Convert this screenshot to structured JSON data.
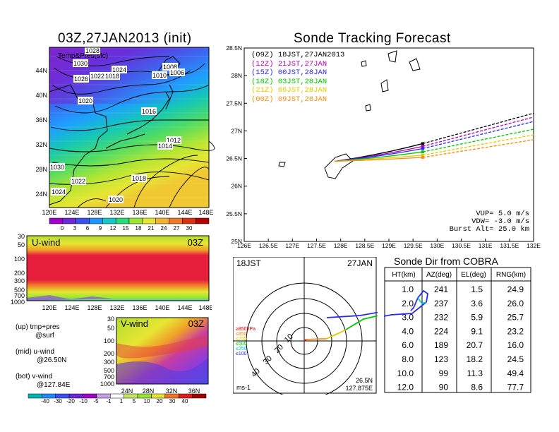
{
  "left_map": {
    "title": "03Z,27JAN2013 (init)",
    "overlay": "Temp&Pres(sfc)",
    "lat_labels": [
      "44N",
      "40N",
      "36N",
      "32N",
      "28N",
      "24N"
    ],
    "lon_labels": [
      "120E",
      "124E",
      "128E",
      "132E",
      "136E",
      "140E",
      "144E",
      "148E"
    ],
    "isobar_labels": [
      "1028",
      "1030",
      "1024",
      "1026",
      "1022",
      "1018",
      "1020",
      "1016",
      "1008",
      "1006",
      "1010",
      "1012",
      "1014",
      "1030",
      "1022",
      "1018",
      "1020",
      "1024"
    ],
    "colorbar_labels": [
      "0",
      "3",
      "6",
      "9",
      "12",
      "15",
      "18",
      "21",
      "24",
      "27",
      "30"
    ],
    "colorbar_colors": [
      "#a000c8",
      "#6e28dc",
      "#3c50f0",
      "#1e96ff",
      "#14c8c8",
      "#28dc78",
      "#9be632",
      "#e6e632",
      "#f0b432",
      "#f07828",
      "#dc3214",
      "#b40000"
    ]
  },
  "uwind": {
    "title": "U-wind",
    "time": "03Z",
    "y_ticks": [
      "30",
      "50",
      "100",
      "200",
      "300",
      "500",
      "700",
      "1000"
    ],
    "x_ticks": [
      "120E",
      "124E",
      "128E",
      "132E",
      "136E",
      "140E",
      "144E",
      "148E"
    ]
  },
  "vwind": {
    "title": "V-wind",
    "time": "03Z",
    "y_ticks": [
      "30",
      "50",
      "100",
      "200",
      "300",
      "500",
      "700",
      "1000"
    ],
    "x_ticks": [
      "24N",
      "28N",
      "32N",
      "36N"
    ],
    "colorbar_labels": [
      "-40",
      "-30",
      "-20",
      "-10",
      "-5",
      "-1",
      "1",
      "5",
      "10",
      "20",
      "30",
      "40"
    ],
    "colorbar_colors": [
      "#00b4b4",
      "#1e8cff",
      "#3c50f0",
      "#6e28dc",
      "#a000c8",
      "#c8a0e6",
      "#ffffff",
      "#c8e664",
      "#9be632",
      "#e6e632",
      "#f07828",
      "#dc1e1e",
      "#a00000"
    ]
  },
  "legend_notes": [
    {
      "a": "(up) tmp+pres",
      "b": "@surf"
    },
    {
      "a": "(mid) u-wind",
      "b": "@26.50N"
    },
    {
      "a": "(bot) v-wind",
      "b": "@127.84E"
    }
  ],
  "track": {
    "title": "Sonde Tracking Forecast",
    "launches": [
      {
        "tag": "(09Z)",
        "time": "18JST,27JAN2013",
        "color": "#000000"
      },
      {
        "tag": "(12Z)",
        "time": "21JST,27JAN",
        "color": "#b400b4"
      },
      {
        "tag": "(15Z)",
        "time": "00JST,28JAN",
        "color": "#2828ff"
      },
      {
        "tag": "(18Z)",
        "time": "03JST,28JAN",
        "color": "#00c800"
      },
      {
        "tag": "(21Z)",
        "time": "06JST,28JAN",
        "color": "#e6c800"
      },
      {
        "tag": "(00Z)",
        "time": "09JST,28JAN",
        "color": "#ff8c14"
      }
    ],
    "params": [
      "VUP= 5.0 m/s",
      "VDW= -3.0 m/s",
      "Burst Alt= 25.0 km"
    ],
    "x_ticks": [
      "126E",
      "126.5E",
      "127E",
      "127.5E",
      "128E",
      "128.5E",
      "129E",
      "129.5E",
      "130E",
      "130.5E",
      "131E",
      "131.5E",
      "132E"
    ],
    "y_ticks": [
      "28.5N",
      "28N",
      "27.5N",
      "27N",
      "26.5N",
      "26N",
      "25.5N",
      "25N"
    ]
  },
  "chart_data": {
    "type": "line",
    "title": "Sonde Tracking Forecast",
    "xlim": [
      126,
      132
    ],
    "ylim": [
      25,
      28.5
    ],
    "launch_point": [
      127.875,
      26.45
    ],
    "series": [
      {
        "name": "(09Z) 18JST,27JAN2013",
        "burst": [
          129.7,
          26.77
        ],
        "end": [
          132.0,
          27.32
        ]
      },
      {
        "name": "(12Z) 21JST,27JAN",
        "burst": [
          129.7,
          26.72
        ],
        "end": [
          132.0,
          27.25
        ]
      },
      {
        "name": "(15Z) 00JST,28JAN",
        "burst": [
          129.7,
          26.68
        ],
        "end": [
          132.0,
          27.17
        ]
      },
      {
        "name": "(18Z) 03JST,28JAN",
        "burst": [
          129.7,
          26.62
        ],
        "end": [
          132.0,
          27.03
        ]
      },
      {
        "name": "(21Z) 06JST,28JAN",
        "burst": [
          129.7,
          26.56
        ],
        "end": [
          132.0,
          26.93
        ]
      },
      {
        "name": "(00Z) 09JST,28JAN",
        "burst": [
          129.7,
          26.52
        ],
        "end": [
          132.0,
          26.84
        ]
      }
    ]
  },
  "polar": {
    "left_label": "18JST",
    "right_label": "27JAN",
    "ring_labels": [
      "10",
      "20",
      "30",
      "40"
    ],
    "legend": [
      {
        "text": "≥850hPa",
        "color": "#e60000"
      },
      {
        "text": "≤850",
        "color": "#ff8c14"
      },
      {
        "text": "≤700",
        "color": "#e6c800"
      },
      {
        "text": "≤500",
        "color": "#00c800"
      },
      {
        "text": "≤250",
        "color": "#00c8c8"
      },
      {
        "text": "≤100",
        "color": "#2828ff"
      }
    ],
    "unit": "ms-1",
    "coord1": "26.5N",
    "coord2": "127.875E"
  },
  "table": {
    "title": "Sonde Dir from COBRA",
    "headers": [
      "HT(km)",
      "AZ(deg)",
      "EL(deg)",
      "RNG(km)"
    ],
    "rows": [
      [
        "1.0",
        "241",
        "1.5",
        "24.9"
      ],
      [
        "2.0",
        "237",
        "3.6",
        "26.0"
      ],
      [
        "3.0",
        "232",
        "5.9",
        "25.7"
      ],
      [
        "4.0",
        "224",
        "9.1",
        "23.2"
      ],
      [
        "6.0",
        "189",
        "20.7",
        "16.0"
      ],
      [
        "8.0",
        "123",
        "18.2",
        "24.5"
      ],
      [
        "10.0",
        "99",
        "11.3",
        "49.4"
      ],
      [
        "12.0",
        "90",
        "8.6",
        "77.7"
      ]
    ]
  }
}
